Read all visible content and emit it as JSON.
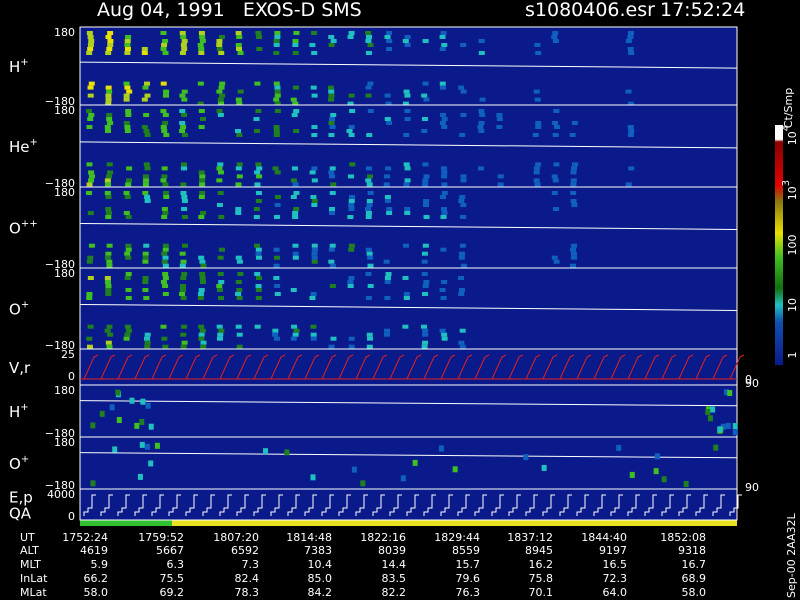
{
  "header": {
    "title": "Aug 04, 1991   EXOS-D SMS",
    "file": "s1080406.esr",
    "time": "17:52:24"
  },
  "panels": [
    {
      "label": [
        {
          "base": "H",
          "sup": "+"
        }
      ],
      "ticks": [
        "180",
        "−180"
      ]
    },
    {
      "label": [
        {
          "base": "He",
          "sup": "+"
        }
      ],
      "ticks": [
        "180",
        "−180"
      ]
    },
    {
      "label": [
        {
          "base": "O",
          "sup": "++"
        }
      ],
      "ticks": [
        "180",
        "−180"
      ]
    },
    {
      "label": [
        {
          "base": "O",
          "sup": "+"
        }
      ],
      "ticks": [
        "180",
        "−180"
      ]
    },
    {
      "label": [
        {
          "base": "V,r"
        }
      ],
      "ticks": [
        "25",
        "0"
      ],
      "right_ticks": [
        "90",
        "0"
      ]
    },
    {
      "label": [
        {
          "base": "H",
          "sup": "+"
        }
      ],
      "ticks": [
        "180",
        "−180"
      ]
    },
    {
      "label": [
        {
          "base": "O",
          "sup": "+"
        }
      ],
      "ticks": [
        "180",
        "−180"
      ],
      "right_ticks": [
        "90"
      ]
    },
    {
      "label": [
        {
          "base": "E,p"
        },
        {
          "base": "QA"
        }
      ],
      "ticks": [
        "4000",
        "0"
      ]
    }
  ],
  "colorbar": {
    "unit": "Ct/Smp",
    "labels": [
      {
        "base": "10",
        "sup": "4"
      },
      {
        "base": "10",
        "sup": "3"
      },
      {
        "base": "100"
      },
      {
        "base": "10"
      },
      {
        "base": "1"
      }
    ]
  },
  "ephemeris": {
    "rows": [
      {
        "name": "UT",
        "cells": [
          "1752:24",
          "1759:52",
          "1807:20",
          "1814:48",
          "1822:16",
          "1829:44",
          "1837:12",
          "1844:40",
          "1852:08"
        ]
      },
      {
        "name": "ALT",
        "cells": [
          "4619",
          "5667",
          "6592",
          "7383",
          "8039",
          "8559",
          "8945",
          "9197",
          "9318"
        ]
      },
      {
        "name": "MLT",
        "cells": [
          "5.9",
          "6.3",
          "7.3",
          "10.4",
          "14.4",
          "15.7",
          "16.2",
          "16.5",
          "16.7"
        ]
      },
      {
        "name": "InLat",
        "cells": [
          "66.2",
          "75.5",
          "82.4",
          "85.0",
          "83.5",
          "79.6",
          "75.8",
          "72.3",
          "68.9"
        ]
      },
      {
        "name": "MLat",
        "cells": [
          "58.0",
          "69.2",
          "78.3",
          "84.2",
          "82.2",
          "76.3",
          "70.1",
          "64.0",
          "58.0"
        ]
      }
    ]
  },
  "footer_note": "Sep-00 2AA32L"
}
